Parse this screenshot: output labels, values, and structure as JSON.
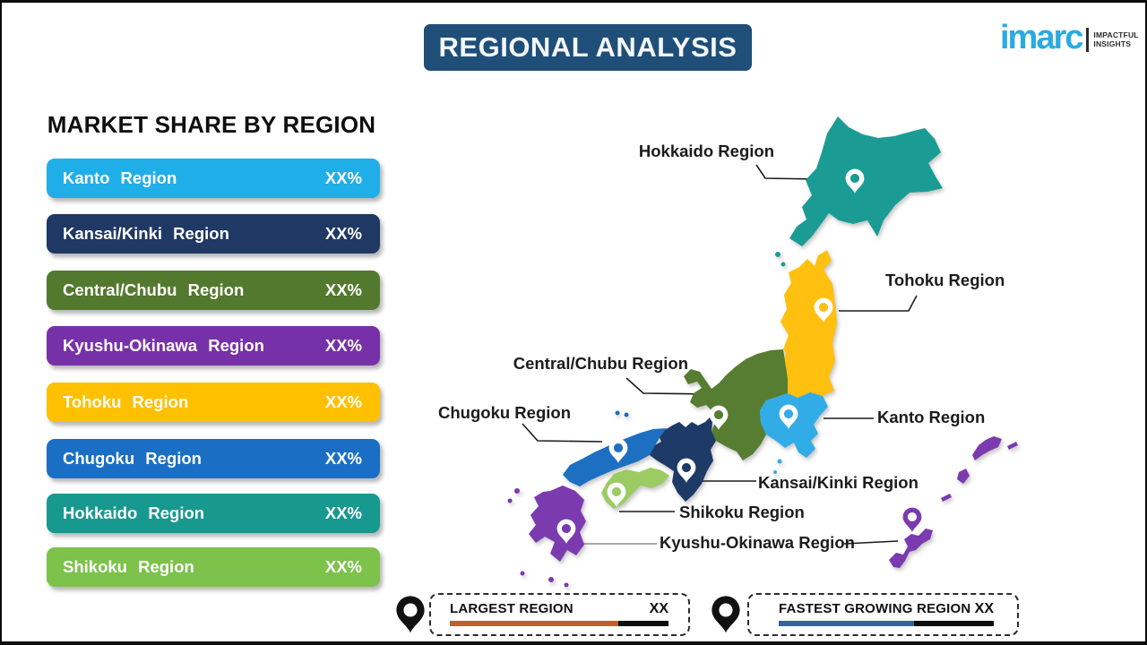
{
  "page": {
    "title": "REGIONAL ANALYSIS",
    "banner_color": "#1F4E79"
  },
  "logo": {
    "brand": "imarc",
    "brand_color": "#29ABE2",
    "tagline_line1": "IMPACTFUL",
    "tagline_line2": "INSIGHTS"
  },
  "market_share": {
    "heading": "MARKET SHARE BY REGION",
    "items": [
      {
        "label": "Kanto Region",
        "value": "XX%",
        "color": "#20AEE9"
      },
      {
        "label": "Kansai/Kinki Region",
        "value": "XX%",
        "color": "#1F3864"
      },
      {
        "label": "Central/Chubu Region",
        "value": "XX%",
        "color": "#53792E"
      },
      {
        "label": "Kyushu-Okinawa Region",
        "value": "XX%",
        "color": "#7731A8"
      },
      {
        "label": "Tohoku Region",
        "value": "XX%",
        "color": "#FFC000"
      },
      {
        "label": "Chugoku Region",
        "value": "XX%",
        "color": "#1A6FC4"
      },
      {
        "label": "Hokkaido Region",
        "value": "XX%",
        "color": "#17998F"
      },
      {
        "label": "Shikoku Region",
        "value": "XX%",
        "color": "#7DC24B"
      }
    ]
  },
  "chart_data": {
    "type": "table",
    "title": "MARKET SHARE BY REGION",
    "categories": [
      "Kanto Region",
      "Kansai/Kinki Region",
      "Central/Chubu Region",
      "Kyushu-Okinawa Region",
      "Tohoku Region",
      "Chugoku Region",
      "Hokkaido Region",
      "Shikoku Region"
    ],
    "values": [
      "XX%",
      "XX%",
      "XX%",
      "XX%",
      "XX%",
      "XX%",
      "XX%",
      "XX%"
    ]
  },
  "map": {
    "labels": {
      "hokkaido": "Hokkaido Region",
      "tohoku": "Tohoku Region",
      "central_chubu": "Central/Chubu Region",
      "chugoku": "Chugoku Region",
      "kanto": "Kanto Region",
      "kansai": "Kansai/Kinki Region",
      "shikoku": "Shikoku Region",
      "kyushu_okinawa": "Kyushu-Okinawa Region"
    },
    "region_colors": {
      "hokkaido": "#1A9C94",
      "tohoku": "#FFC010",
      "kanto": "#31ACE6",
      "chubu": "#567D31",
      "kansai": "#1E3A66",
      "chugoku": "#1D6FC2",
      "shikoku": "#9CCB63",
      "kyushu": "#7B3AAE",
      "okinawa": "#7B3AAE"
    },
    "pin_colors": {
      "standard": "#FFFFFF",
      "okinawa": "#7B3AAE",
      "footer": "#111111"
    }
  },
  "footer": {
    "largest": {
      "label": "LARGEST REGION",
      "value": "XX",
      "bar_color": "#C1602A"
    },
    "fastest": {
      "label": "FASTEST GROWING REGION",
      "value": "XX",
      "bar_color": "#34639F"
    }
  }
}
